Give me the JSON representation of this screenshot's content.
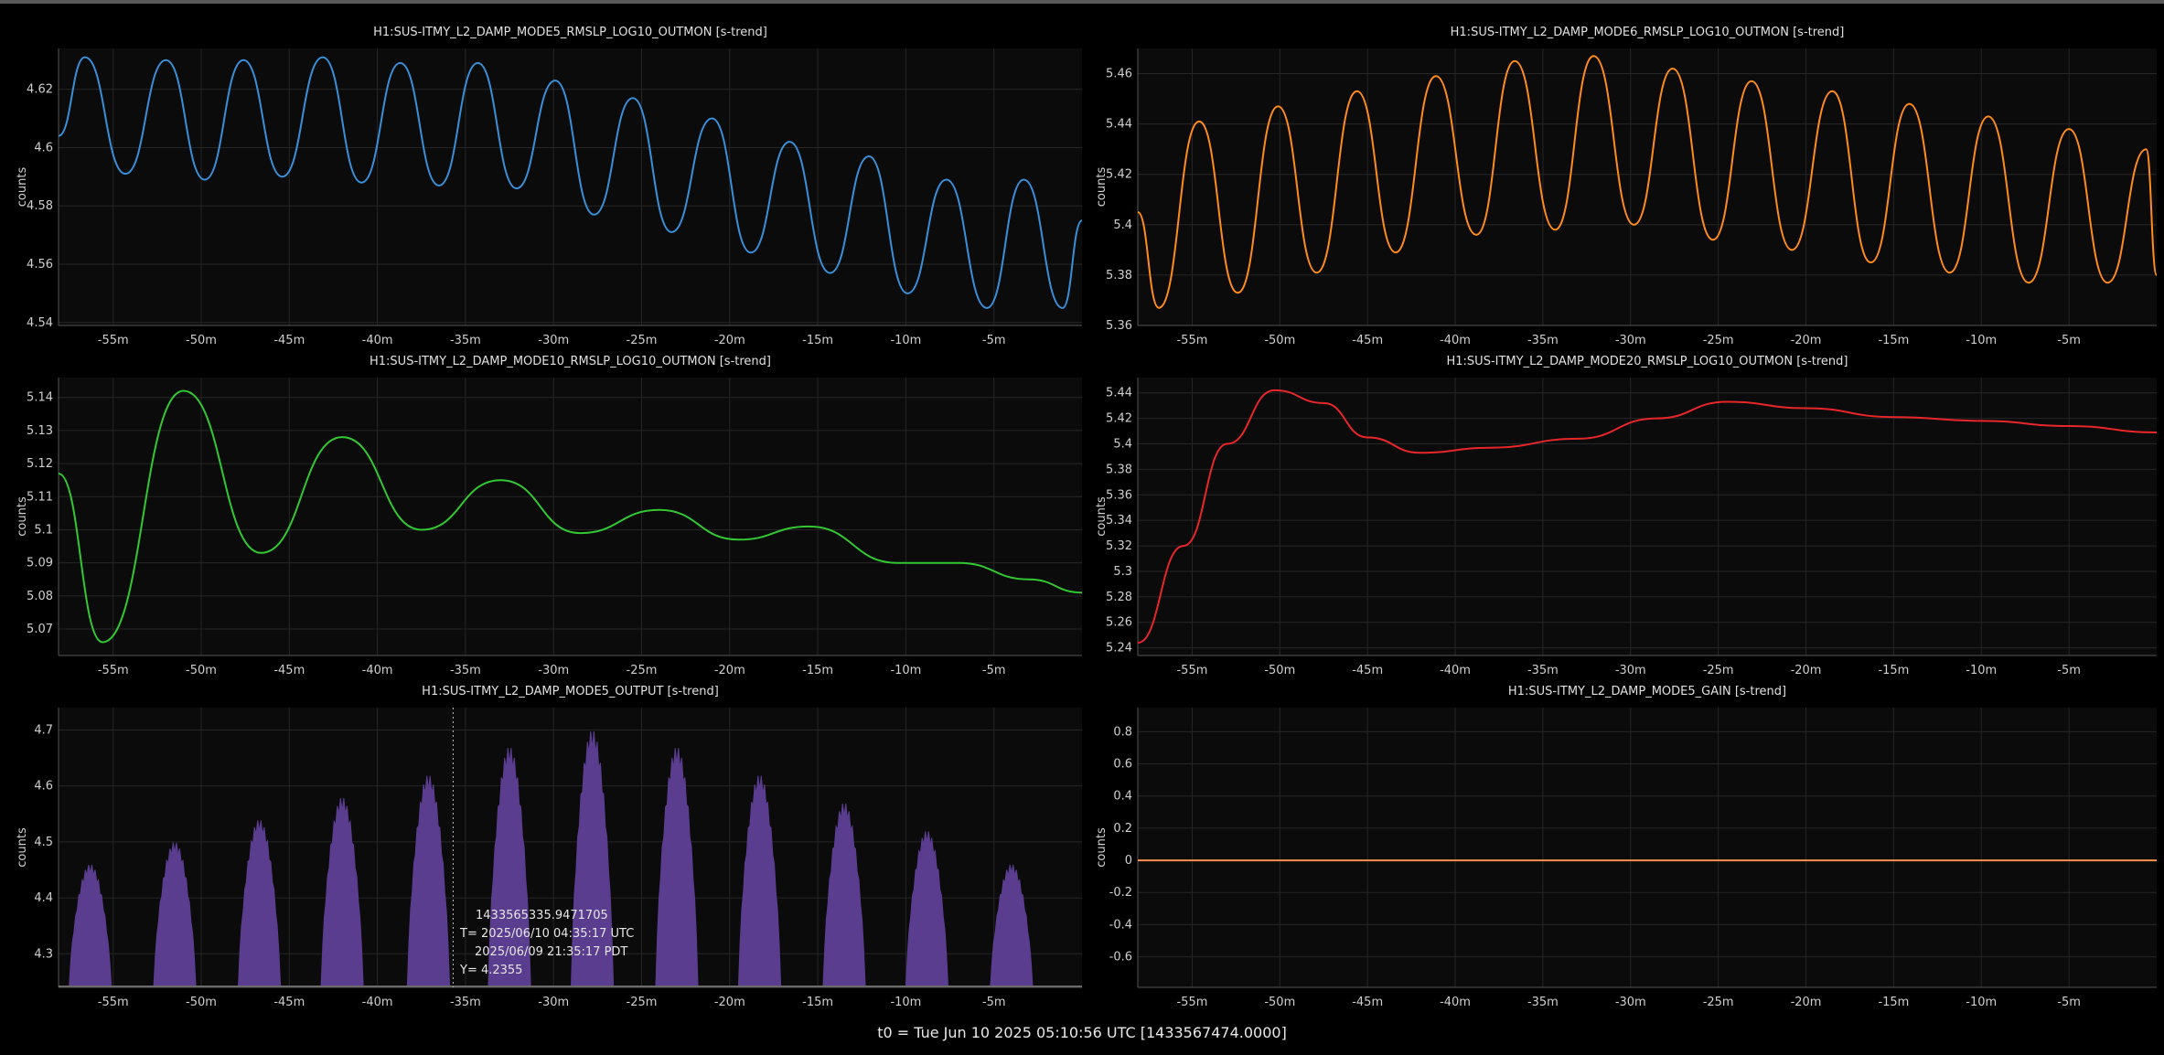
{
  "footer": "t0 = Tue Jun 10 2025 05:10:56 UTC [1433567474.0000]",
  "chart_data": [
    {
      "type": "line",
      "title": "H1:SUS-ITMY_L2_DAMP_MODE5_RMSLP_LOG10_OUTMON [s-trend]",
      "ylabel": "counts",
      "color": "#3a8fd9",
      "xlim": [
        -58.1,
        0
      ],
      "ylim": [
        4.539,
        4.634
      ],
      "xticks": [
        -55,
        -50,
        -45,
        -40,
        -35,
        -30,
        -25,
        -20,
        -15,
        -10,
        -5
      ],
      "xtick_labels": [
        "-55m",
        "-50m",
        "-45m",
        "-40m",
        "-35m",
        "-30m",
        "-25m",
        "-20m",
        "-15m",
        "-10m",
        "-5m"
      ],
      "yticks": [
        4.54,
        4.56,
        4.58,
        4.6,
        4.62
      ],
      "ytick_labels": [
        "4.54",
        "4.56",
        "4.58",
        "4.6",
        "4.62"
      ],
      "x": [
        -58.1,
        -56.6,
        -54.3,
        -52.0,
        -49.8,
        -47.6,
        -45.4,
        -43.1,
        -40.9,
        -38.7,
        -36.5,
        -34.3,
        -32.1,
        -29.9,
        -27.7,
        -25.5,
        -23.3,
        -21.0,
        -18.8,
        -16.6,
        -14.3,
        -12.1,
        -9.9,
        -7.7,
        -5.4,
        -3.3,
        -1.1,
        0
      ],
      "series": [
        {
          "values": [
            4.604,
            4.631,
            4.591,
            4.63,
            4.589,
            4.63,
            4.59,
            4.631,
            4.588,
            4.629,
            4.587,
            4.629,
            4.586,
            4.623,
            4.577,
            4.617,
            4.571,
            4.61,
            4.564,
            4.602,
            4.557,
            4.597,
            4.55,
            4.589,
            4.545,
            4.589,
            4.545,
            4.575
          ]
        }
      ]
    },
    {
      "type": "line",
      "title": "H1:SUS-ITMY_L2_DAMP_MODE6_RMSLP_LOG10_OUTMON [s-trend]",
      "ylabel": "counts",
      "color": "#ff8c1a",
      "xlim": [
        -58.1,
        0
      ],
      "ylim": [
        5.36,
        5.47
      ],
      "xticks": [
        -55,
        -50,
        -45,
        -40,
        -35,
        -30,
        -25,
        -20,
        -15,
        -10,
        -5
      ],
      "xtick_labels": [
        "-55m",
        "-50m",
        "-45m",
        "-40m",
        "-35m",
        "-30m",
        "-25m",
        "-20m",
        "-15m",
        "-10m",
        "-5m"
      ],
      "yticks": [
        5.36,
        5.38,
        5.4,
        5.42,
        5.44,
        5.46
      ],
      "ytick_labels": [
        "5.36",
        "5.38",
        "5.4",
        "5.42",
        "5.44",
        "5.46"
      ],
      "x": [
        -58.1,
        -56.9,
        -54.6,
        -52.4,
        -50.1,
        -47.9,
        -45.6,
        -43.4,
        -41.1,
        -38.8,
        -36.6,
        -34.3,
        -32.1,
        -29.8,
        -27.6,
        -25.3,
        -23.1,
        -20.8,
        -18.5,
        -16.3,
        -14.1,
        -11.8,
        -9.6,
        -7.3,
        -5.0,
        -2.8,
        -0.6,
        0
      ],
      "series": [
        {
          "values": [
            5.405,
            5.367,
            5.441,
            5.373,
            5.447,
            5.381,
            5.453,
            5.389,
            5.459,
            5.396,
            5.465,
            5.398,
            5.467,
            5.4,
            5.462,
            5.394,
            5.457,
            5.39,
            5.453,
            5.385,
            5.448,
            5.381,
            5.443,
            5.377,
            5.438,
            5.377,
            5.43,
            5.38
          ]
        }
      ]
    },
    {
      "type": "line",
      "title": "H1:SUS-ITMY_L2_DAMP_MODE10_RMSLP_LOG10_OUTMON [s-trend]",
      "ylabel": "counts",
      "color": "#32c832",
      "xlim": [
        -58.1,
        0
      ],
      "ylim": [
        5.062,
        5.146
      ],
      "xticks": [
        -55,
        -50,
        -45,
        -40,
        -35,
        -30,
        -25,
        -20,
        -15,
        -10,
        -5
      ],
      "xtick_labels": [
        "-55m",
        "-50m",
        "-45m",
        "-40m",
        "-35m",
        "-30m",
        "-25m",
        "-20m",
        "-15m",
        "-10m",
        "-5m"
      ],
      "yticks": [
        5.07,
        5.08,
        5.09,
        5.1,
        5.11,
        5.12,
        5.13,
        5.14
      ],
      "ytick_labels": [
        "5.07",
        "5.08",
        "5.09",
        "5.1",
        "5.11",
        "5.12",
        "5.13",
        "5.14"
      ],
      "x": [
        -58.1,
        -55.6,
        -51.0,
        -46.6,
        -42.0,
        -37.5,
        -33.0,
        -28.5,
        -24.0,
        -19.5,
        -15.5,
        -10.5,
        -7.0,
        -3.0,
        0
      ],
      "series": [
        {
          "values": [
            5.117,
            5.066,
            5.142,
            5.093,
            5.128,
            5.1,
            5.115,
            5.099,
            5.106,
            5.097,
            5.101,
            5.09,
            5.09,
            5.085,
            5.081
          ]
        }
      ]
    },
    {
      "type": "line",
      "title": "H1:SUS-ITMY_L2_DAMP_MODE20_RMSLP_LOG10_OUTMON [s-trend]",
      "ylabel": "counts",
      "color": "#e8262a",
      "xlim": [
        -58.1,
        0
      ],
      "ylim": [
        5.234,
        5.452
      ],
      "xticks": [
        -55,
        -50,
        -45,
        -40,
        -35,
        -30,
        -25,
        -20,
        -15,
        -10,
        -5
      ],
      "xtick_labels": [
        "-55m",
        "-50m",
        "-45m",
        "-40m",
        "-35m",
        "-30m",
        "-25m",
        "-20m",
        "-15m",
        "-10m",
        "-5m"
      ],
      "yticks": [
        5.24,
        5.26,
        5.28,
        5.3,
        5.32,
        5.34,
        5.36,
        5.38,
        5.4,
        5.42,
        5.44
      ],
      "ytick_labels": [
        "5.24",
        "5.26",
        "5.28",
        "5.3",
        "5.32",
        "5.34",
        "5.36",
        "5.38",
        "5.4",
        "5.42",
        "5.44"
      ],
      "x": [
        -58.1,
        -55.5,
        -53.0,
        -50.3,
        -47.5,
        -45.0,
        -42.0,
        -38.0,
        -33.0,
        -28.5,
        -24.5,
        -20.0,
        -15.0,
        -10.0,
        -5.0,
        0
      ],
      "series": [
        {
          "values": [
            5.244,
            5.32,
            5.4,
            5.442,
            5.432,
            5.405,
            5.393,
            5.397,
            5.404,
            5.42,
            5.433,
            5.428,
            5.421,
            5.418,
            5.414,
            5.409
          ]
        }
      ]
    },
    {
      "type": "area",
      "title": "H1:SUS-ITMY_L2_DAMP_MODE5_OUTPUT [s-trend]",
      "ylabel": "counts",
      "color": "#5a3d8f",
      "xlim": [
        -58.1,
        0
      ],
      "ylim": [
        4.24,
        4.74
      ],
      "xticks": [
        -55,
        -50,
        -45,
        -40,
        -35,
        -30,
        -25,
        -20,
        -15,
        -10,
        -5
      ],
      "xtick_labels": [
        "-55m",
        "-50m",
        "-45m",
        "-40m",
        "-35m",
        "-30m",
        "-25m",
        "-20m",
        "-15m",
        "-10m",
        "-5m"
      ],
      "yticks": [
        4.3,
        4.4,
        4.5,
        4.6,
        4.7
      ],
      "ytick_labels": [
        "4.3",
        "4.4",
        "4.5",
        "4.6",
        "4.7"
      ],
      "peaks_x": [
        -56.3,
        -51.5,
        -46.7,
        -42.0,
        -37.1,
        -32.5,
        -27.8,
        -23.0,
        -18.3,
        -13.5,
        -8.8,
        -4.0
      ],
      "peaks_y": [
        4.46,
        4.5,
        4.54,
        4.58,
        4.62,
        4.67,
        4.7,
        4.67,
        4.62,
        4.57,
        4.52,
        4.46
      ],
      "cursor": {
        "x": -35.7,
        "lines": [
          "1433565335.9471705",
          "T= 2025/06/10 04:35:17 UTC",
          "2025/06/09 21:35:17 PDT",
          "Y= 4.2355"
        ]
      }
    },
    {
      "type": "line",
      "title": "H1:SUS-ITMY_L2_DAMP_MODE5_GAIN [s-trend]",
      "ylabel": "counts",
      "color": "#ff9450",
      "xlim": [
        -58.1,
        0
      ],
      "ylim": [
        -0.79,
        0.95
      ],
      "xticks": [
        -55,
        -50,
        -45,
        -40,
        -35,
        -30,
        -25,
        -20,
        -15,
        -10,
        -5
      ],
      "xtick_labels": [
        "-55m",
        "-50m",
        "-45m",
        "-40m",
        "-35m",
        "-30m",
        "-25m",
        "-20m",
        "-15m",
        "-10m",
        "-5m"
      ],
      "yticks": [
        -0.6,
        -0.4,
        -0.2,
        0,
        0.2,
        0.4,
        0.6,
        0.8
      ],
      "ytick_labels": [
        "-0.6",
        "-0.4",
        "-0.2",
        "0",
        "0.2",
        "0.4",
        "0.6",
        "0.8"
      ],
      "x": [
        -58.1,
        0
      ],
      "series": [
        {
          "values": [
            0,
            0
          ]
        }
      ]
    }
  ]
}
